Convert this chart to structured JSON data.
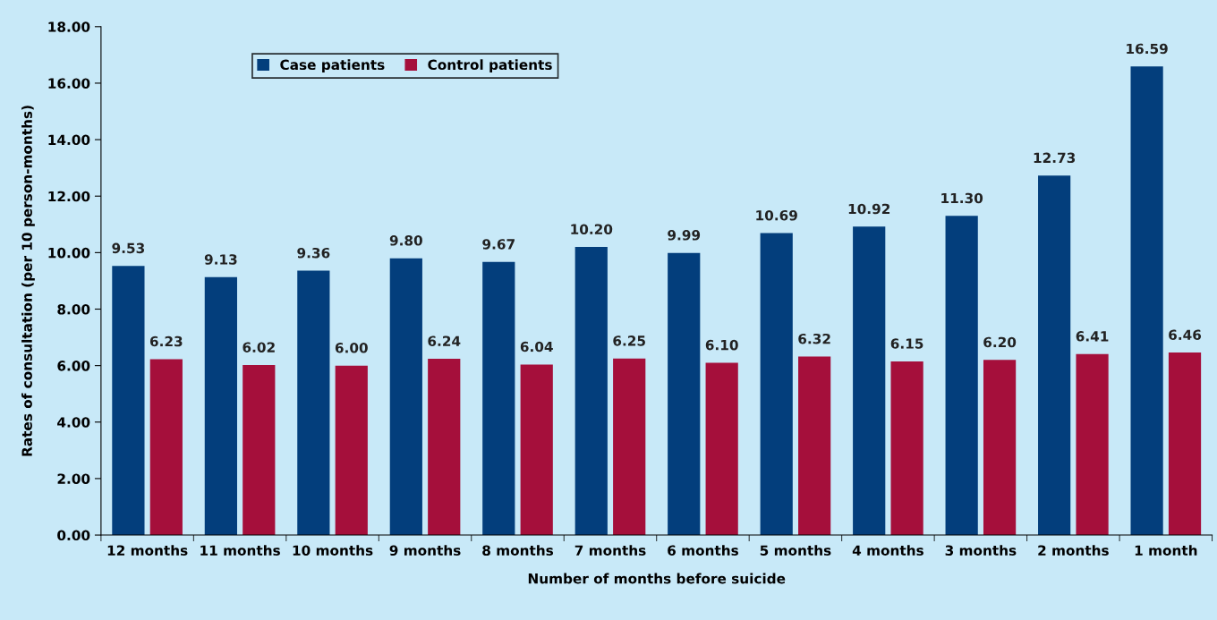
{
  "chart_data": {
    "type": "bar",
    "xlabel": "Number of months before suicide",
    "ylabel": "Rates of consultation (per 10 person-months)",
    "categories": [
      "12 months",
      "11 months",
      "10 months",
      "9 months",
      "8 months",
      "7 months",
      "6 months",
      "5 months",
      "4 months",
      "3 months",
      "2 months",
      "1 month"
    ],
    "series": [
      {
        "name": "Case patients",
        "color": "#033e7c",
        "values": [
          9.53,
          9.13,
          9.36,
          9.8,
          9.67,
          10.2,
          9.99,
          10.69,
          10.92,
          11.3,
          12.73,
          16.59
        ],
        "value_labels": [
          "9.53",
          "9.13",
          "9.36",
          "9.80",
          "9.67",
          "10.20",
          "9.99",
          "10.69",
          "10.92",
          "11.30",
          "12.73",
          "16.59"
        ]
      },
      {
        "name": "Control patients",
        "color": "#a50f3b",
        "values": [
          6.23,
          6.02,
          6.0,
          6.24,
          6.04,
          6.25,
          6.1,
          6.32,
          6.15,
          6.2,
          6.41,
          6.46
        ],
        "value_labels": [
          "6.23",
          "6.02",
          "6.00",
          "6.24",
          "6.04",
          "6.25",
          "6.10",
          "6.32",
          "6.15",
          "6.20",
          "6.41",
          "6.46"
        ]
      }
    ],
    "ylim": [
      0,
      18
    ],
    "yticks": [
      {
        "value": 0,
        "label": "0.00"
      },
      {
        "value": 2,
        "label": "2.00"
      },
      {
        "value": 4,
        "label": "4.00"
      },
      {
        "value": 6,
        "label": "6.00"
      },
      {
        "value": 8,
        "label": "8.00"
      },
      {
        "value": 10,
        "label": "10.00"
      },
      {
        "value": 12,
        "label": "12.00"
      },
      {
        "value": 14,
        "label": "14.00"
      },
      {
        "value": 16,
        "label": "16.00"
      },
      {
        "value": 18,
        "label": "18.00"
      }
    ],
    "grid": false,
    "legend": "top left"
  }
}
